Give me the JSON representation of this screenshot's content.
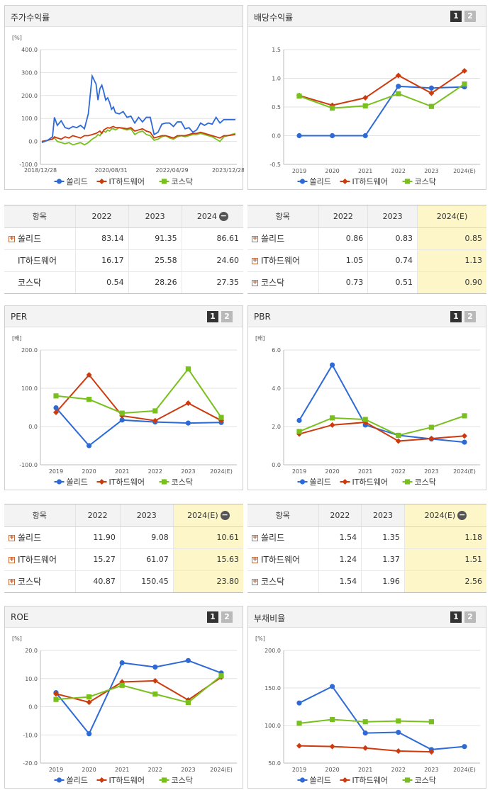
{
  "legend": [
    "쏠리드",
    "IT하드웨어",
    "코스닥"
  ],
  "colors": {
    "s1": "#2e6ad6",
    "s2": "#cc3a0d",
    "s3": "#79c01f"
  },
  "panels": [
    {
      "title": "주가수익률",
      "buttons": false
    },
    {
      "title": "배당수익률",
      "buttons": true,
      "btn1": "1",
      "btn2": "2"
    },
    {
      "title": "PER",
      "buttons": true,
      "btn1": "1",
      "btn2": "2"
    },
    {
      "title": "PBR",
      "buttons": true,
      "btn1": "1",
      "btn2": "2"
    },
    {
      "title": "ROE",
      "buttons": true,
      "btn1": "1",
      "btn2": "2"
    },
    {
      "title": "부채비율",
      "buttons": true,
      "btn1": "1",
      "btn2": "2"
    }
  ],
  "tables": [
    {
      "header": [
        "항목",
        "2022",
        "2023",
        "2024"
      ],
      "minus": "−",
      "highlight": false,
      "rows": [
        {
          "name": "쏠리드",
          "plus": true,
          "values": [
            "83.14",
            "91.35",
            "86.61"
          ]
        },
        {
          "name": "IT하드웨어",
          "plus": false,
          "values": [
            "16.17",
            "25.58",
            "24.60"
          ]
        },
        {
          "name": "코스닥",
          "plus": false,
          "values": [
            "0.54",
            "28.26",
            "27.35"
          ]
        }
      ]
    },
    {
      "header": [
        "항목",
        "2022",
        "2023",
        "2024(E)"
      ],
      "minus": "",
      "highlight": true,
      "rows": [
        {
          "name": "쏠리드",
          "plus": true,
          "values": [
            "0.86",
            "0.83",
            "0.85"
          ]
        },
        {
          "name": "IT하드웨어",
          "plus": true,
          "values": [
            "1.05",
            "0.74",
            "1.13"
          ]
        },
        {
          "name": "코스닥",
          "plus": true,
          "values": [
            "0.73",
            "0.51",
            "0.90"
          ]
        }
      ]
    },
    {
      "header": [
        "항목",
        "2022",
        "2023",
        "2024(E)"
      ],
      "minus": "−",
      "highlight": true,
      "rows": [
        {
          "name": "쏠리드",
          "plus": true,
          "values": [
            "11.90",
            "9.08",
            "10.61"
          ]
        },
        {
          "name": "IT하드웨어",
          "plus": true,
          "values": [
            "15.27",
            "61.07",
            "15.63"
          ]
        },
        {
          "name": "코스닥",
          "plus": true,
          "values": [
            "40.87",
            "150.45",
            "23.80"
          ]
        }
      ]
    },
    {
      "header": [
        "항목",
        "2022",
        "2023",
        "2024(E)"
      ],
      "minus": "−",
      "highlight": true,
      "rows": [
        {
          "name": "쏠리드",
          "plus": true,
          "values": [
            "1.54",
            "1.35",
            "1.18"
          ]
        },
        {
          "name": "IT하드웨어",
          "plus": true,
          "values": [
            "1.24",
            "1.37",
            "1.51"
          ]
        },
        {
          "name": "코스닥",
          "plus": true,
          "values": [
            "1.54",
            "1.96",
            "2.56"
          ]
        }
      ]
    }
  ],
  "chart_data": [
    {
      "type": "line",
      "title": "주가수익률",
      "unit": "[%]",
      "yticks": [
        -100,
        0,
        100,
        200,
        300,
        400
      ],
      "ytick_labels": [
        "-100.0",
        "0.0",
        "100.0",
        "200.0",
        "300.0",
        "400.0"
      ],
      "ylim": [
        -100,
        400
      ],
      "xtick_labels": [
        "2018/12/28",
        "2020/08/31",
        "2022/04/29",
        "2023/12/28"
      ],
      "grid": true,
      "x": [
        0,
        0.03,
        0.055,
        0.065,
        0.08,
        0.1,
        0.12,
        0.14,
        0.16,
        0.18,
        0.2,
        0.22,
        0.24,
        0.26,
        0.28,
        0.29,
        0.3,
        0.31,
        0.32,
        0.33,
        0.34,
        0.35,
        0.36,
        0.37,
        0.38,
        0.4,
        0.42,
        0.44,
        0.46,
        0.48,
        0.5,
        0.52,
        0.54,
        0.56,
        0.58,
        0.6,
        0.62,
        0.64,
        0.66,
        0.68,
        0.7,
        0.72,
        0.74,
        0.76,
        0.78,
        0.8,
        0.82,
        0.84,
        0.86,
        0.88,
        0.9,
        0.92,
        0.94,
        0.96,
        1.0
      ],
      "series": [
        {
          "name": "쏠리드",
          "values": [
            -5,
            5,
            20,
            105,
            70,
            90,
            60,
            55,
            65,
            60,
            70,
            55,
            120,
            285,
            250,
            180,
            230,
            245,
            215,
            180,
            190,
            170,
            140,
            150,
            125,
            120,
            130,
            105,
            110,
            80,
            105,
            85,
            105,
            105,
            30,
            40,
            75,
            80,
            80,
            65,
            85,
            85,
            55,
            60,
            40,
            50,
            80,
            70,
            80,
            75,
            105,
            80,
            95,
            95,
            95
          ]
        },
        {
          "name": "IT하드웨어",
          "values": [
            0,
            5,
            10,
            20,
            15,
            10,
            20,
            15,
            25,
            20,
            15,
            25,
            25,
            30,
            35,
            40,
            45,
            35,
            50,
            55,
            60,
            58,
            62,
            65,
            60,
            60,
            58,
            55,
            60,
            45,
            50,
            55,
            45,
            40,
            15,
            20,
            25,
            25,
            20,
            15,
            25,
            25,
            25,
            30,
            35,
            35,
            40,
            35,
            30,
            25,
            20,
            15,
            25,
            25,
            30
          ]
        },
        {
          "name": "코스닥",
          "values": [
            0,
            5,
            10,
            15,
            0,
            -5,
            -10,
            -5,
            -15,
            -10,
            -5,
            -15,
            -5,
            10,
            20,
            30,
            25,
            40,
            45,
            40,
            50,
            45,
            55,
            55,
            50,
            60,
            55,
            50,
            55,
            30,
            40,
            45,
            30,
            25,
            5,
            10,
            20,
            25,
            15,
            10,
            20,
            25,
            20,
            25,
            30,
            30,
            35,
            30,
            25,
            20,
            10,
            0,
            20,
            25,
            35
          ]
        }
      ]
    },
    {
      "type": "line",
      "title": "배당수익률",
      "yticks": [
        -0.5,
        0,
        0.5,
        1.0,
        1.5
      ],
      "ytick_labels": [
        "-0.5",
        "0.0",
        "0.5",
        "1.0",
        "1.5"
      ],
      "ylim": [
        -0.5,
        1.5
      ],
      "categories": [
        "2019",
        "2020",
        "2021",
        "2022",
        "2023",
        "2024(E)"
      ],
      "series": [
        {
          "name": "쏠리드",
          "values": [
            0,
            0,
            0,
            0.86,
            0.83,
            0.85
          ]
        },
        {
          "name": "IT하드웨어",
          "values": [
            0.7,
            0.53,
            0.66,
            1.05,
            0.74,
            1.13
          ]
        },
        {
          "name": "코스닥",
          "values": [
            0.69,
            0.48,
            0.52,
            0.73,
            0.51,
            0.9
          ]
        }
      ]
    },
    {
      "type": "line",
      "title": "PER",
      "unit": "[배]",
      "yticks": [
        -100,
        0,
        100,
        200
      ],
      "ytick_labels": [
        "-100.0",
        "0.0",
        "100.0",
        "200.0"
      ],
      "ylim": [
        -100,
        200
      ],
      "categories": [
        "2019",
        "2020",
        "2021",
        "2022",
        "2023",
        "2024(E)"
      ],
      "series": [
        {
          "name": "쏠리드",
          "values": [
            49,
            -50,
            17,
            11.9,
            9.08,
            10.61
          ]
        },
        {
          "name": "IT하드웨어",
          "values": [
            37,
            135,
            28,
            15.27,
            61.07,
            15.63
          ]
        },
        {
          "name": "코스닥",
          "values": [
            80,
            71,
            35,
            40.87,
            150.45,
            23.8
          ]
        }
      ]
    },
    {
      "type": "line",
      "title": "PBR",
      "unit": "[배]",
      "yticks": [
        0,
        2,
        4,
        6
      ],
      "ytick_labels": [
        "0.0",
        "2.0",
        "4.0",
        "6.0"
      ],
      "ylim": [
        0,
        6
      ],
      "categories": [
        "2019",
        "2020",
        "2021",
        "2022",
        "2023",
        "2024(E)"
      ],
      "series": [
        {
          "name": "쏠리드",
          "values": [
            2.32,
            5.22,
            2.08,
            1.54,
            1.35,
            1.18
          ]
        },
        {
          "name": "IT하드웨어",
          "values": [
            1.61,
            2.08,
            2.22,
            1.24,
            1.37,
            1.51
          ]
        },
        {
          "name": "코스닥",
          "values": [
            1.74,
            2.45,
            2.37,
            1.54,
            1.96,
            2.56
          ]
        }
      ]
    },
    {
      "type": "line",
      "title": "ROE",
      "unit": "[%]",
      "yticks": [
        -20,
        -10,
        0,
        10,
        20
      ],
      "ytick_labels": [
        "-20.0",
        "-10.0",
        "0.0",
        "10.0",
        "20.0"
      ],
      "ylim": [
        -20,
        20
      ],
      "categories": [
        "2019",
        "2020",
        "2021",
        "2022",
        "2023",
        "2024(E)"
      ],
      "series": [
        {
          "name": "쏠리드",
          "values": [
            5.0,
            -9.6,
            15.6,
            14.1,
            16.4,
            12.0
          ]
        },
        {
          "name": "IT하드웨어",
          "values": [
            4.6,
            1.6,
            8.8,
            9.2,
            2.4,
            10.5
          ]
        },
        {
          "name": "코스닥",
          "values": [
            2.6,
            3.5,
            7.6,
            4.5,
            1.5,
            11.0
          ]
        }
      ]
    },
    {
      "type": "line",
      "title": "부채비율",
      "unit": "[%]",
      "yticks": [
        50,
        100,
        150,
        200
      ],
      "ytick_labels": [
        "50.0",
        "100.0",
        "150.0",
        "200.0"
      ],
      "ylim": [
        50,
        200
      ],
      "categories": [
        "2019",
        "2020",
        "2021",
        "2022",
        "2023",
        "2024(E)"
      ],
      "series": [
        {
          "name": "쏠리드",
          "values": [
            130,
            152,
            90,
            91,
            68,
            72
          ]
        },
        {
          "name": "IT하드웨어",
          "values": [
            73,
            72,
            70,
            66,
            65,
            null
          ]
        },
        {
          "name": "코스닥",
          "values": [
            103,
            108,
            105,
            106,
            105,
            null
          ]
        }
      ]
    }
  ]
}
